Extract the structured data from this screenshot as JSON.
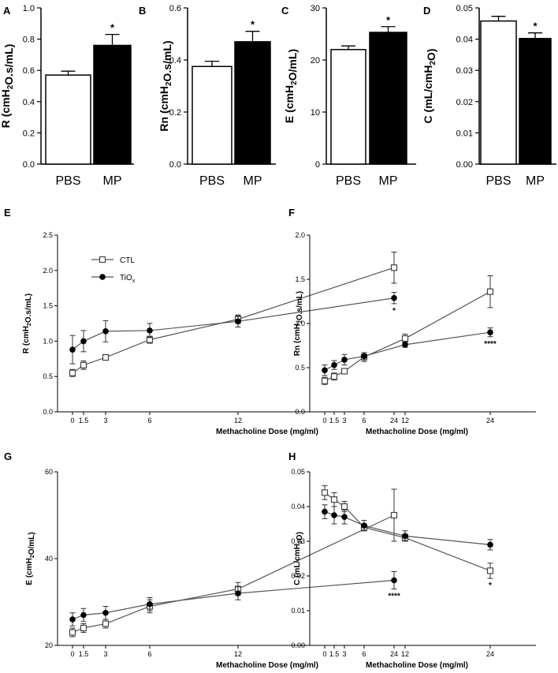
{
  "chart_data": [
    {
      "panel": "A",
      "type": "bar",
      "categories": [
        "PBS",
        "MP"
      ],
      "values": [
        0.57,
        0.76
      ],
      "errors": [
        0.025,
        0.07
      ],
      "fills": [
        "#ffffff",
        "#000000"
      ],
      "ylabel": "R (cmH₂O.s/mL)",
      "ylim": [
        0,
        1.0
      ],
      "yticks": [
        "0.0",
        "0.2",
        "0.4",
        "0.6",
        "0.8",
        "1.0"
      ],
      "annotations": [
        {
          "category": "MP",
          "text": "*"
        }
      ]
    },
    {
      "panel": "B",
      "type": "bar",
      "categories": [
        "PBS",
        "MP"
      ],
      "values": [
        0.375,
        0.47
      ],
      "errors": [
        0.02,
        0.04
      ],
      "fills": [
        "#ffffff",
        "#000000"
      ],
      "ylabel": "Rn (cmH₂O.s/mL)",
      "ylim": [
        0,
        0.6
      ],
      "yticks": [
        "0.0",
        "0.2",
        "0.4",
        "0.6"
      ],
      "annotations": [
        {
          "category": "MP",
          "text": "*"
        }
      ]
    },
    {
      "panel": "C",
      "type": "bar",
      "categories": [
        "PBS",
        "MP"
      ],
      "values": [
        22,
        25.3
      ],
      "errors": [
        0.7,
        1.1
      ],
      "fills": [
        "#ffffff",
        "#000000"
      ],
      "ylabel": "E (cmH₂O/mL)",
      "ylim": [
        0,
        30
      ],
      "yticks": [
        "0",
        "10",
        "20",
        "30"
      ],
      "annotations": [
        {
          "category": "MP",
          "text": "*"
        }
      ]
    },
    {
      "panel": "D",
      "type": "bar",
      "categories": [
        "PBS",
        "MP"
      ],
      "values": [
        0.0458,
        0.0402
      ],
      "errors": [
        0.0015,
        0.0018
      ],
      "fills": [
        "#ffffff",
        "#000000"
      ],
      "ylabel": "C (mL/cmH₂O)",
      "ylim": [
        0,
        0.05
      ],
      "yticks": [
        "0.00",
        "0.01",
        "0.02",
        "0.03",
        "0.04",
        "0.05"
      ],
      "annotations": [
        {
          "category": "MP",
          "text": "*"
        }
      ]
    },
    {
      "panel": "E",
      "type": "line",
      "x": [
        0,
        1.5,
        3,
        6,
        12,
        24
      ],
      "xticks": [
        "0",
        "1.5",
        "3",
        "6",
        "12",
        "24"
      ],
      "xlabel": "Methacholine Dose (mg/ml)",
      "ylabel": "R (cmH₂O.s/mL)",
      "ylim": [
        0,
        2.5
      ],
      "yticks": [
        "0.0",
        "0.5",
        "1.0",
        "1.5",
        "2.0",
        "2.5"
      ],
      "series": [
        {
          "name": "CTL",
          "marker": "open-square",
          "values": [
            0.55,
            0.66,
            0.77,
            1.02,
            1.31,
            2.04
          ],
          "errors": [
            0.05,
            0.06,
            0.04,
            0.05,
            0.06,
            0.22
          ]
        },
        {
          "name": "TiOx",
          "marker": "filled-circle",
          "values": [
            0.88,
            1.0,
            1.14,
            1.15,
            1.28,
            1.61
          ],
          "errors": [
            0.2,
            0.15,
            0.15,
            0.1,
            0.08,
            0.08
          ]
        }
      ],
      "legend": {
        "position": "top-left",
        "items": [
          {
            "label": "CTL"
          },
          {
            "label": "TiO",
            "sub": "x"
          }
        ]
      },
      "annotations": [
        {
          "x": 24,
          "text": "*"
        }
      ]
    },
    {
      "panel": "F",
      "type": "line",
      "x": [
        0,
        1.5,
        3,
        6,
        12,
        24
      ],
      "xticks": [
        "0",
        "1.5",
        "3",
        "6",
        "12",
        "24"
      ],
      "xlabel": "Methacholine Dose (mg/ml)",
      "ylabel": "Rn (cmH₂O.s/mL)",
      "ylim": [
        0,
        2.0
      ],
      "yticks": [
        "0.0",
        "0.5",
        "1.0",
        "1.5",
        "2.0"
      ],
      "series": [
        {
          "name": "CTL",
          "marker": "open-square",
          "values": [
            0.35,
            0.4,
            0.46,
            0.62,
            0.83,
            1.36
          ],
          "errors": [
            0.04,
            0.04,
            0.03,
            0.05,
            0.05,
            0.18
          ]
        },
        {
          "name": "TiOx",
          "marker": "filled-circle",
          "values": [
            0.47,
            0.53,
            0.59,
            0.63,
            0.76,
            0.9
          ],
          "errors": [
            0.06,
            0.05,
            0.06,
            0.04,
            0.03,
            0.05
          ]
        }
      ],
      "annotations": [
        {
          "x": 24,
          "text": "****"
        }
      ]
    },
    {
      "panel": "G",
      "type": "line",
      "x": [
        0,
        1.5,
        3,
        6,
        12,
        24
      ],
      "xticks": [
        "0",
        "1.5",
        "3",
        "6",
        "12",
        "24"
      ],
      "xlabel": "Methacholine Dose (mg/ml)",
      "ylabel": "E (cmH₂O/mL)",
      "ylim": [
        20,
        60
      ],
      "yticks": [
        "20",
        "40",
        "60"
      ],
      "series": [
        {
          "name": "CTL",
          "marker": "open-square",
          "values": [
            23,
            24,
            25,
            29,
            33,
            50
          ],
          "errors": [
            1,
            1,
            1,
            1.5,
            1.5,
            6
          ]
        },
        {
          "name": "TiOx",
          "marker": "filled-circle",
          "values": [
            26,
            27,
            27.5,
            29.5,
            32,
            35
          ],
          "errors": [
            1.5,
            1.5,
            1.5,
            1.5,
            1.5,
            2
          ]
        }
      ],
      "annotations": [
        {
          "x": 24,
          "text": "****"
        }
      ]
    },
    {
      "panel": "H",
      "type": "line",
      "x": [
        0,
        1.5,
        3,
        6,
        12,
        24
      ],
      "xticks": [
        "0",
        "1.5",
        "3",
        "6",
        "12",
        "24"
      ],
      "xlabel": "Methacholine Dose (mg/ml)",
      "ylabel": "C (mL/cmH₂O)",
      "ylim": [
        0,
        0.05
      ],
      "yticks": [
        "0.00",
        "0.01",
        "0.02",
        "0.03",
        "0.04",
        "0.05"
      ],
      "series": [
        {
          "name": "CTL",
          "marker": "open-square",
          "values": [
            0.044,
            0.042,
            0.04,
            0.034,
            0.031,
            0.0215
          ],
          "errors": [
            0.002,
            0.002,
            0.0015,
            0.001,
            0.001,
            0.0022
          ]
        },
        {
          "name": "TiOx",
          "marker": "filled-circle",
          "values": [
            0.0385,
            0.0375,
            0.037,
            0.0345,
            0.0315,
            0.029
          ],
          "errors": [
            0.002,
            0.0025,
            0.002,
            0.0015,
            0.0015,
            0.0015
          ]
        }
      ],
      "annotations": [
        {
          "x": 24,
          "text": "*"
        }
      ]
    }
  ]
}
